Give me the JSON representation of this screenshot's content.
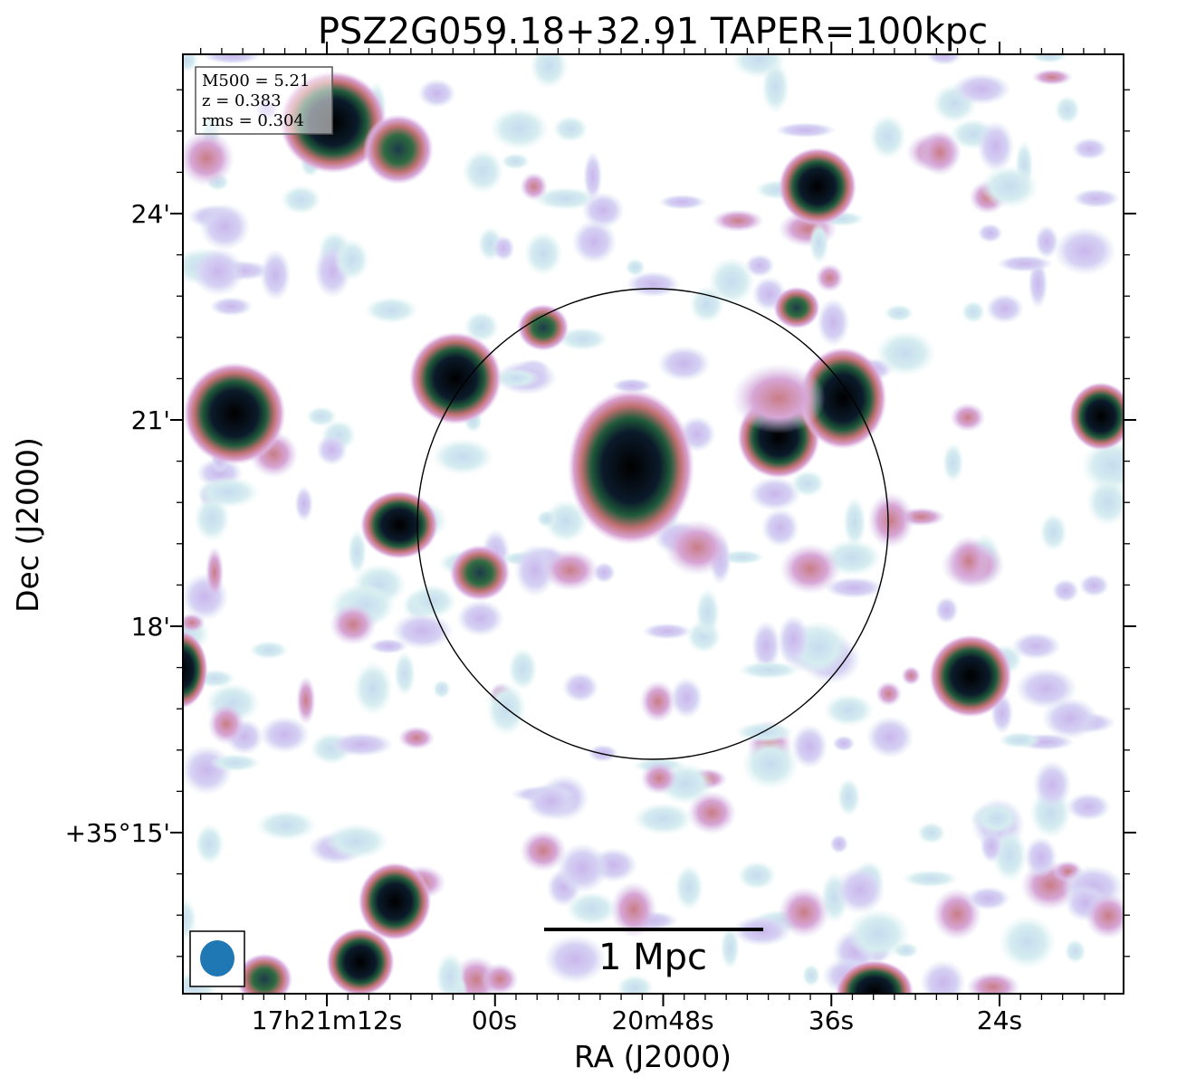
{
  "title": "PSZ2G059.18+32.91 TAPER=100kpc",
  "xlabel": "RA (J2000)",
  "ylabel": "Dec (J2000)",
  "xticks": [
    "17h21m12s",
    "00s",
    "20m48s",
    "36s",
    "24s"
  ],
  "yticks": [
    "24'",
    "21'",
    "18'",
    "+35°15'"
  ],
  "info": {
    "m500": "M500 = 5.21",
    "z": "z = 0.383",
    "rms": "rms = 0.304"
  },
  "scalebar_label": "1 Mpc",
  "colors": {
    "beam": "#1f77b4",
    "circle": "#000000"
  }
}
